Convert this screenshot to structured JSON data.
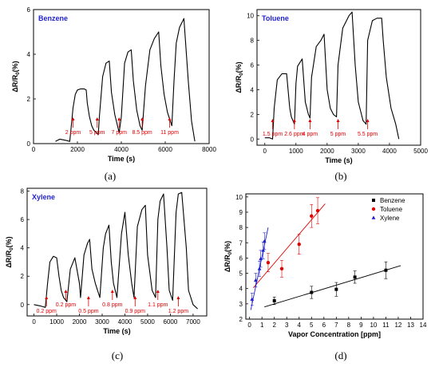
{
  "chart_data": [
    {
      "id": "a",
      "type": "line",
      "panel_label": "(a)",
      "title": "Benzene",
      "xlabel": "Time (s)",
      "ylabel": "ΔR/R0(%)",
      "xlim": [
        0,
        8000
      ],
      "ylim": [
        0,
        6
      ],
      "xticks": [
        0,
        2000,
        4000,
        6000,
        8000
      ],
      "yticks": [
        0,
        2,
        4,
        6
      ],
      "series": [
        {
          "x": [
            1000,
            1200,
            1450,
            1650,
            1700,
            1800,
            1900,
            2000,
            2150,
            2300,
            2400,
            2450,
            2550,
            2650,
            2750,
            2850,
            2950,
            3000,
            3150,
            3300,
            3450,
            3550,
            3700,
            3850,
            3900,
            4000,
            4150,
            4300,
            4450,
            4550,
            4700,
            4850,
            4950,
            5100,
            5300,
            5500,
            5700,
            5800,
            5950,
            6100,
            6300,
            6400,
            6500,
            6650,
            6850,
            7050,
            7200,
            7350
          ],
          "y": [
            0.1,
            0.2,
            0.15,
            0.1,
            0.6,
            1.6,
            2.2,
            2.4,
            2.45,
            2.45,
            2.4,
            1.8,
            1.2,
            0.8,
            0.6,
            0.5,
            0.4,
            1.2,
            3.0,
            3.6,
            3.7,
            2.3,
            1.3,
            0.7,
            0.5,
            1.2,
            3.6,
            4.1,
            4.2,
            2.8,
            1.5,
            0.8,
            0.6,
            2.6,
            4.2,
            4.7,
            5.0,
            3.5,
            2.2,
            1.4,
            0.8,
            2.8,
            4.5,
            5.2,
            5.6,
            2.8,
            1.0,
            0.1
          ]
        }
      ],
      "annotations": [
        {
          "x": 1800,
          "text": "2 ppm"
        },
        {
          "x": 2900,
          "text": "5 ppm"
        },
        {
          "x": 3900,
          "text": "7 ppm"
        },
        {
          "x": 4950,
          "text": "8.5 ppm"
        },
        {
          "x": 6200,
          "text": "11 ppm"
        }
      ]
    },
    {
      "id": "b",
      "type": "line",
      "panel_label": "(b)",
      "title": "Toluene",
      "xlabel": "Time (s)",
      "ylabel": "ΔR/R0(%)",
      "xlim": [
        -250,
        5000
      ],
      "ylim": [
        -0.5,
        10.5
      ],
      "xticks": [
        0,
        1000,
        2000,
        3000,
        4000,
        5000
      ],
      "yticks": [
        0,
        2,
        4,
        6,
        8,
        10
      ],
      "series": [
        {
          "x": [
            0,
            150,
            250,
            300,
            400,
            550,
            700,
            800,
            850,
            950,
            1000,
            1050,
            1200,
            1300,
            1400,
            1450,
            1500,
            1650,
            1800,
            1900,
            2000,
            2100,
            2200,
            2300,
            2350,
            2500,
            2700,
            2800,
            2900,
            3000,
            3150,
            3250,
            3300,
            3450,
            3600,
            3750,
            3800,
            3900,
            4050,
            4200,
            4300
          ],
          "y": [
            0.1,
            0.1,
            0.0,
            2.5,
            4.8,
            5.3,
            5.3,
            2.5,
            1.8,
            1.2,
            4.5,
            5.9,
            6.5,
            3.0,
            2.0,
            1.7,
            5.0,
            7.5,
            8.0,
            8.5,
            4.0,
            2.5,
            2.0,
            1.8,
            6.0,
            9.0,
            10.0,
            10.3,
            6.0,
            3.0,
            1.5,
            1.2,
            8.0,
            9.6,
            9.8,
            9.8,
            8.0,
            5.0,
            2.5,
            1.2,
            0.0
          ]
        }
      ],
      "annotations": [
        {
          "x": 250,
          "text": "1.5 ppm"
        },
        {
          "x": 950,
          "text": "2.6 ppm"
        },
        {
          "x": 1450,
          "text": "4 ppm"
        },
        {
          "x": 2350,
          "text": "5 ppm"
        },
        {
          "x": 3300,
          "text": "5.5 ppm"
        }
      ]
    },
    {
      "id": "c",
      "type": "line",
      "panel_label": "(c)",
      "title": "Xylene",
      "xlabel": "Time (s)",
      "ylabel": "ΔR/R0(%)",
      "xlim": [
        -300,
        7600
      ],
      "ylim": [
        -0.8,
        8.2
      ],
      "xticks": [
        0,
        1000,
        2000,
        3000,
        4000,
        5000,
        6000,
        7000
      ],
      "yticks": [
        0,
        2,
        4,
        6,
        8
      ],
      "series": [
        {
          "x": [
            0,
            300,
            500,
            600,
            700,
            850,
            1000,
            1100,
            1200,
            1300,
            1400,
            1450,
            1600,
            1800,
            2000,
            2050,
            2200,
            2350,
            2450,
            2550,
            2700,
            2900,
            3050,
            3150,
            3300,
            3400,
            3500,
            3650,
            3850,
            4000,
            4150,
            4300,
            4400,
            4550,
            4750,
            4900,
            5000,
            5200,
            5350,
            5450,
            5550,
            5700,
            5850,
            5950,
            6100,
            6250,
            6350,
            6500,
            6700,
            6800,
            7000,
            7200
          ],
          "y": [
            0.0,
            -0.1,
            -0.2,
            1.5,
            3.0,
            3.4,
            3.3,
            2.0,
            1.0,
            0.5,
            0.3,
            0.2,
            2.5,
            3.3,
            1.5,
            0.5,
            3.5,
            4.3,
            4.6,
            2.5,
            1.5,
            0.5,
            4.0,
            5.0,
            5.6,
            3.0,
            1.5,
            0.5,
            5.0,
            6.5,
            3.5,
            1.5,
            0.5,
            5.5,
            6.7,
            7.0,
            3.5,
            1.0,
            0.5,
            6.0,
            7.3,
            7.8,
            4.0,
            1.0,
            0.3,
            6.5,
            7.8,
            7.9,
            4.0,
            1.0,
            0.0,
            -0.3
          ]
        }
      ],
      "annotations": [
        {
          "x": 550,
          "text": "0.2 ppm"
        },
        {
          "x": 1400,
          "text": "0.2 ppm"
        },
        {
          "x": 2400,
          "text": "0.5 ppm"
        },
        {
          "x": 3450,
          "text": "0.8 ppm"
        },
        {
          "x": 4450,
          "text": "0.9 ppm"
        },
        {
          "x": 5450,
          "text": "1.1 ppm"
        },
        {
          "x": 6350,
          "text": "1.2 ppm"
        }
      ]
    },
    {
      "id": "d",
      "type": "scatter",
      "panel_label": "(d)",
      "xlabel": "Vapor Concentration [ppm]",
      "ylabel": "ΔR/R0(%)",
      "xlim": [
        -0.3,
        14
      ],
      "ylim": [
        2,
        10.2
      ],
      "xticks": [
        0,
        1,
        2,
        3,
        4,
        5,
        6,
        7,
        8,
        9,
        10,
        11,
        12,
        13,
        14
      ],
      "yticks": [
        2,
        3,
        4,
        5,
        6,
        7,
        8,
        9,
        10
      ],
      "legend_position": "top-right",
      "series": [
        {
          "name": "Benzene",
          "color": "#000000",
          "marker": "square",
          "x": [
            2,
            5,
            7,
            8.5,
            11
          ],
          "y": [
            3.2,
            3.75,
            3.95,
            4.75,
            5.2
          ],
          "err": [
            0.25,
            0.4,
            0.45,
            0.4,
            0.55
          ],
          "fit": [
            [
              1.2,
              2.8
            ],
            [
              12.2,
              5.5
            ]
          ]
        },
        {
          "name": "Toluene",
          "color": "#e00000",
          "marker": "circle",
          "x": [
            1.5,
            2.6,
            4,
            5,
            5.5
          ],
          "y": [
            5.7,
            5.3,
            6.9,
            8.75,
            9.1
          ],
          "err": [
            0.6,
            0.55,
            0.65,
            0.75,
            0.85
          ],
          "fit": [
            [
              0.3,
              4.05
            ],
            [
              6.1,
              9.55
            ]
          ]
        },
        {
          "name": "Xylene",
          "color": "#1f1fd0",
          "marker": "triangle",
          "x": [
            0.2,
            0.5,
            0.8,
            0.9,
            1.1,
            1.2
          ],
          "y": [
            3.3,
            4.55,
            5.3,
            5.95,
            6.5,
            7.1
          ],
          "err": [
            0.4,
            0.45,
            0.5,
            0.55,
            0.55,
            0.55
          ],
          "fit": [
            [
              0.1,
              2.6
            ],
            [
              1.5,
              8.0
            ]
          ]
        }
      ]
    }
  ]
}
